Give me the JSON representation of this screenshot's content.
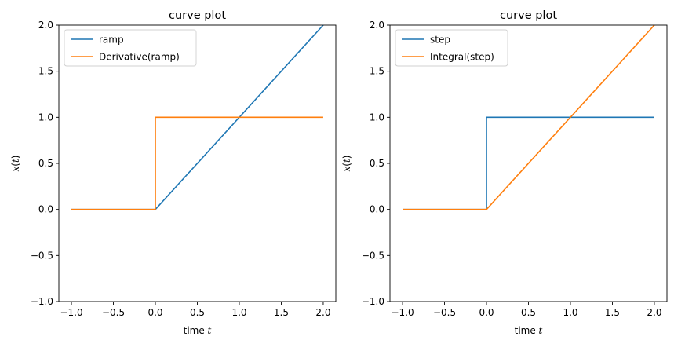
{
  "chart_data": [
    {
      "type": "line",
      "title": "curve plot",
      "xlabel": "time",
      "xlabel_var": "t",
      "ylabel_var": "x",
      "ylabel_arg": "t",
      "xlim": [
        -1.15,
        2.15
      ],
      "ylim": [
        -1.0,
        2.0
      ],
      "xticks": [
        "−1.0",
        "−0.5",
        "0.0",
        "0.5",
        "1.0",
        "1.5",
        "2.0"
      ],
      "xtick_values": [
        -1.0,
        -0.5,
        0.0,
        0.5,
        1.0,
        1.5,
        2.0
      ],
      "yticks": [
        "−1.0",
        "−0.5",
        "0.0",
        "0.5",
        "1.0",
        "1.5",
        "2.0"
      ],
      "ytick_values": [
        -1.0,
        -0.5,
        0.0,
        0.5,
        1.0,
        1.5,
        2.0
      ],
      "legend_position": "top-left",
      "grid": false,
      "series": [
        {
          "name": "ramp",
          "color": "#1f77b4",
          "x": [
            -1.0,
            0.0,
            2.0
          ],
          "y": [
            0.0,
            0.0,
            2.0
          ]
        },
        {
          "name": "Derivative(ramp)",
          "color": "#ff7f0e",
          "x": [
            -1.0,
            0.0,
            0.0,
            2.0
          ],
          "y": [
            0.0,
            0.0,
            1.0,
            1.0
          ]
        }
      ]
    },
    {
      "type": "line",
      "title": "curve plot",
      "xlabel": "time",
      "xlabel_var": "t",
      "ylabel_var": "x",
      "ylabel_arg": "t",
      "xlim": [
        -1.15,
        2.15
      ],
      "ylim": [
        -1.0,
        2.0
      ],
      "xticks": [
        "−1.0",
        "−0.5",
        "0.0",
        "0.5",
        "1.0",
        "1.5",
        "2.0"
      ],
      "xtick_values": [
        -1.0,
        -0.5,
        0.0,
        0.5,
        1.0,
        1.5,
        2.0
      ],
      "yticks": [
        "−1.0",
        "−0.5",
        "0.0",
        "0.5",
        "1.0",
        "1.5",
        "2.0"
      ],
      "ytick_values": [
        -1.0,
        -0.5,
        0.0,
        0.5,
        1.0,
        1.5,
        2.0
      ],
      "legend_position": "top-left",
      "grid": false,
      "series": [
        {
          "name": "step",
          "color": "#1f77b4",
          "x": [
            -1.0,
            0.0,
            0.0,
            2.0
          ],
          "y": [
            0.0,
            0.0,
            1.0,
            1.0
          ]
        },
        {
          "name": "Integral(step)",
          "color": "#ff7f0e",
          "x": [
            -1.0,
            0.0,
            2.0
          ],
          "y": [
            0.0,
            0.0,
            2.0
          ]
        }
      ]
    }
  ]
}
